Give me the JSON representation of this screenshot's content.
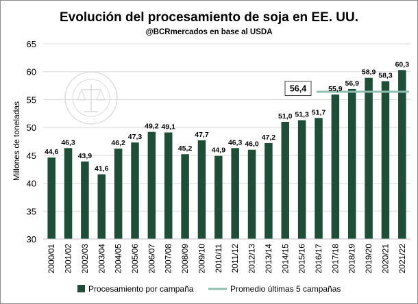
{
  "chart_data": {
    "type": "bar",
    "title": "Evolución del procesamiento de soja en EE. UU.",
    "subtitle": "@BCRmercados en base al USDA",
    "ylabel": "Millones de toneladas",
    "xlabel": "",
    "ylim": [
      30,
      65
    ],
    "yticks": [
      30,
      35,
      40,
      45,
      50,
      55,
      60,
      65
    ],
    "grid": true,
    "legend_position": "bottom",
    "categories": [
      "2000/01",
      "2001/02",
      "2002/03",
      "2003/04",
      "2004/05",
      "2005/06",
      "2006/07",
      "2007/08",
      "2008/09",
      "2009/10",
      "2010/11",
      "2011/12",
      "2012/13",
      "2013/14",
      "2014/15",
      "2015/16",
      "2016/17",
      "2017/18",
      "2018/19",
      "2019/20",
      "2020/21",
      "2021/22"
    ],
    "series": [
      {
        "name": "Procesamiento por campaña",
        "type": "bar",
        "color": "#1e4d38",
        "values": [
          44.6,
          46.3,
          43.9,
          41.6,
          46.2,
          47.3,
          49.2,
          49.1,
          45.2,
          47.7,
          44.9,
          46.3,
          46.0,
          47.2,
          51.0,
          51.3,
          51.7,
          55.9,
          56.9,
          58.9,
          58.3,
          60.3
        ],
        "labels": [
          "44,6",
          "46,3",
          "43,9",
          "41,6",
          "46,2",
          "47,3",
          "49,2",
          "49,1",
          "45,2",
          "47,7",
          "44,9",
          "46,3",
          "46,0",
          "47,2",
          "51,0",
          "51,3",
          "51,7",
          "55,9",
          "56,9",
          "58,9",
          "58,3",
          "60,3"
        ]
      },
      {
        "name": "Promedio últimas 5 campañas",
        "type": "line",
        "color": "#8fbfae",
        "value": 56.4,
        "label": "56,4",
        "span": [
          "2016/17",
          "2021/22"
        ]
      }
    ]
  }
}
